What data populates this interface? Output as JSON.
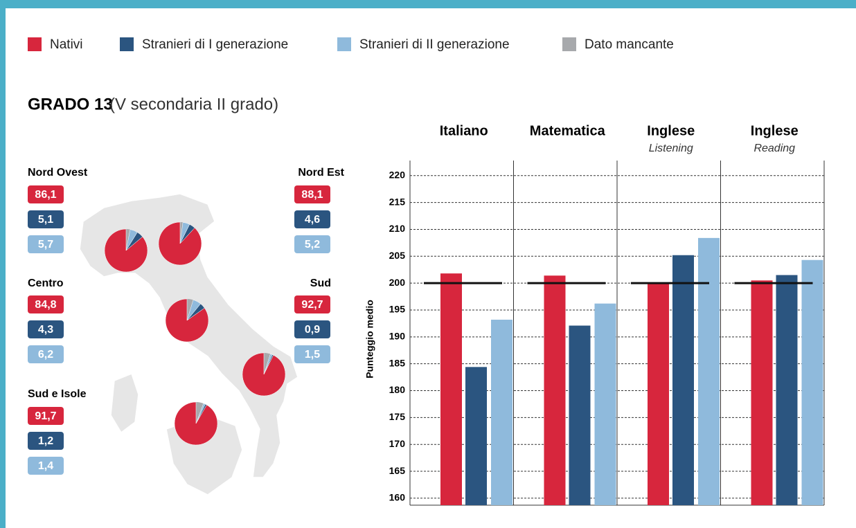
{
  "title": "GRADO 13",
  "subtitle": "(V secondaria II grado)",
  "chart_data": [
    {
      "type": "pie",
      "missing": {
        "name": "Dato mancante",
        "color": "#a7a9ac"
      },
      "regions": [
        {
          "name": "Nord Ovest",
          "values": [
            86.1,
            5.1,
            5.7
          ],
          "value_labels": [
            "86,1",
            "5,1",
            "5,7"
          ]
        },
        {
          "name": "Nord Est",
          "values": [
            88.1,
            4.6,
            5.2
          ],
          "value_labels": [
            "88,1",
            "4,6",
            "5,2"
          ]
        },
        {
          "name": "Centro",
          "values": [
            84.8,
            4.3,
            6.2
          ],
          "value_labels": [
            "84,8",
            "4,3",
            "6,2"
          ]
        },
        {
          "name": "Sud",
          "values": [
            92.7,
            0.9,
            1.5
          ],
          "value_labels": [
            "92,7",
            "0,9",
            "1,5"
          ]
        },
        {
          "name": "Sud e Isole",
          "values": [
            91.7,
            1.2,
            1.4
          ],
          "value_labels": [
            "91,7",
            "1,2",
            "1,4"
          ]
        }
      ]
    },
    {
      "type": "bar",
      "categories": [
        "Italiano",
        "Matematica",
        "Inglese",
        "Inglese"
      ],
      "category_subtitles": [
        null,
        null,
        "Listening",
        "Reading"
      ],
      "series": [
        {
          "name": "Nativi",
          "color": "#d7263d",
          "values": [
            201.8,
            201.4,
            199.9,
            200.5
          ]
        },
        {
          "name": "Stranieri di I generazione",
          "color": "#2b5580",
          "values": [
            184.4,
            192.1,
            205.2,
            201.5
          ]
        },
        {
          "name": "Stranieri di II generazione",
          "color": "#8fbadc",
          "values": [
            193.2,
            196.2,
            208.4,
            204.3
          ]
        }
      ],
      "reference_line": 200,
      "ylabel": "Punteggio medio",
      "ylim": [
        158.7,
        222.8
      ],
      "yticks": [
        160,
        165,
        170,
        175,
        180,
        185,
        190,
        195,
        200,
        205,
        210,
        215,
        220
      ],
      "grid": true
    }
  ]
}
